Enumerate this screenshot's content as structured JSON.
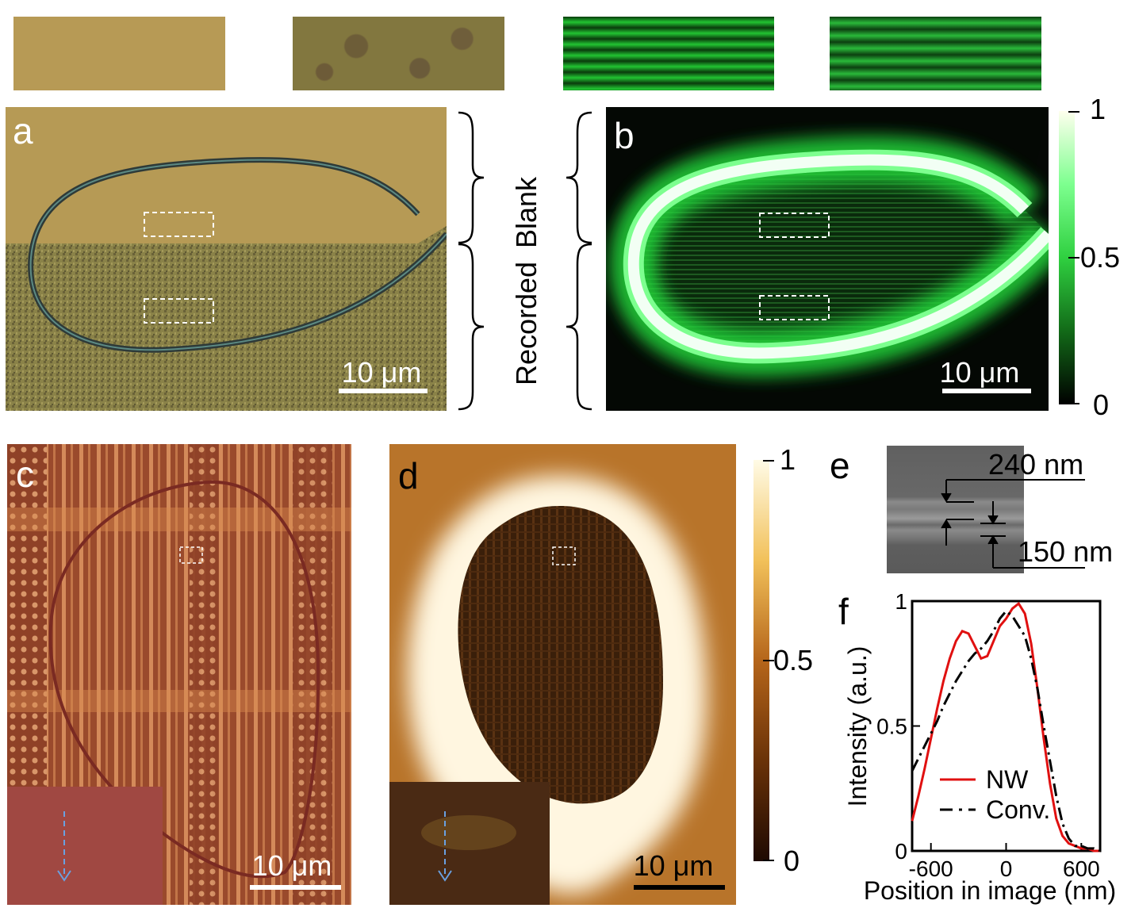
{
  "figure": {
    "strips": [
      {
        "name": "strip-blank-optical",
        "color": "#b79a55"
      },
      {
        "name": "strip-recorded-optical",
        "color": "#7b6f3a"
      },
      {
        "name": "strip-blank-fluorescence",
        "color": "#1fb530"
      },
      {
        "name": "strip-recorded-fluorescence",
        "color": "#1f9a25"
      }
    ],
    "panel_a": {
      "letter": "a",
      "scalebar": "10 μm"
    },
    "panel_b": {
      "letter": "b",
      "scalebar": "10 μm",
      "colorbar": {
        "max": "1",
        "mid": "0.5",
        "min": "0"
      }
    },
    "labels": {
      "blank": "Blank",
      "recorded": "Recorded"
    },
    "panel_c": {
      "letter": "c",
      "scalebar": "10 μm"
    },
    "panel_d": {
      "letter": "d",
      "scalebar": "10 μm",
      "colorbar": {
        "max": "1",
        "mid": "0.5",
        "min": "0"
      }
    },
    "panel_e": {
      "letter": "e",
      "dim1": "240 nm",
      "dim2": "150 nm"
    },
    "panel_f": {
      "letter": "f"
    }
  },
  "chart_data": {
    "type": "line",
    "xlabel": "Position in image (nm)",
    "ylabel": "Intensity (a.u.)",
    "xlim": [
      -750,
      750
    ],
    "ylim": [
      0,
      1
    ],
    "xticks": [
      "-600",
      "0",
      "600"
    ],
    "yticks": [
      "0",
      "0.5",
      "1"
    ],
    "legend_position": "bottom-center",
    "series": [
      {
        "name": "NW",
        "color": "#e01010",
        "style": "solid",
        "x": [
          -750,
          -700,
          -650,
          -600,
          -550,
          -500,
          -450,
          -400,
          -350,
          -300,
          -250,
          -200,
          -150,
          -100,
          -50,
          0,
          50,
          100,
          150,
          200,
          250,
          300,
          350,
          400,
          450,
          500,
          550,
          600,
          650,
          700,
          750
        ],
        "y": [
          0.12,
          0.22,
          0.33,
          0.45,
          0.57,
          0.68,
          0.77,
          0.84,
          0.88,
          0.87,
          0.82,
          0.77,
          0.78,
          0.84,
          0.9,
          0.93,
          0.97,
          0.99,
          0.95,
          0.83,
          0.65,
          0.45,
          0.27,
          0.13,
          0.06,
          0.03,
          0.02,
          0.01,
          0.01,
          0.0,
          0.0
        ]
      },
      {
        "name": "Conv.",
        "color": "#000000",
        "style": "dashdot",
        "x": [
          -750,
          -700,
          -650,
          -600,
          -550,
          -500,
          -450,
          -400,
          -350,
          -300,
          -250,
          -200,
          -150,
          -100,
          -50,
          0,
          50,
          100,
          150,
          200,
          250,
          300,
          350,
          400,
          450,
          500,
          550,
          600,
          650,
          700,
          750
        ],
        "y": [
          0.32,
          0.37,
          0.42,
          0.47,
          0.52,
          0.58,
          0.63,
          0.68,
          0.72,
          0.76,
          0.79,
          0.81,
          0.84,
          0.88,
          0.93,
          0.96,
          0.94,
          0.9,
          0.86,
          0.77,
          0.65,
          0.5,
          0.36,
          0.22,
          0.11,
          0.05,
          0.02,
          0.02,
          0.01,
          0.01,
          0.0
        ]
      }
    ]
  }
}
